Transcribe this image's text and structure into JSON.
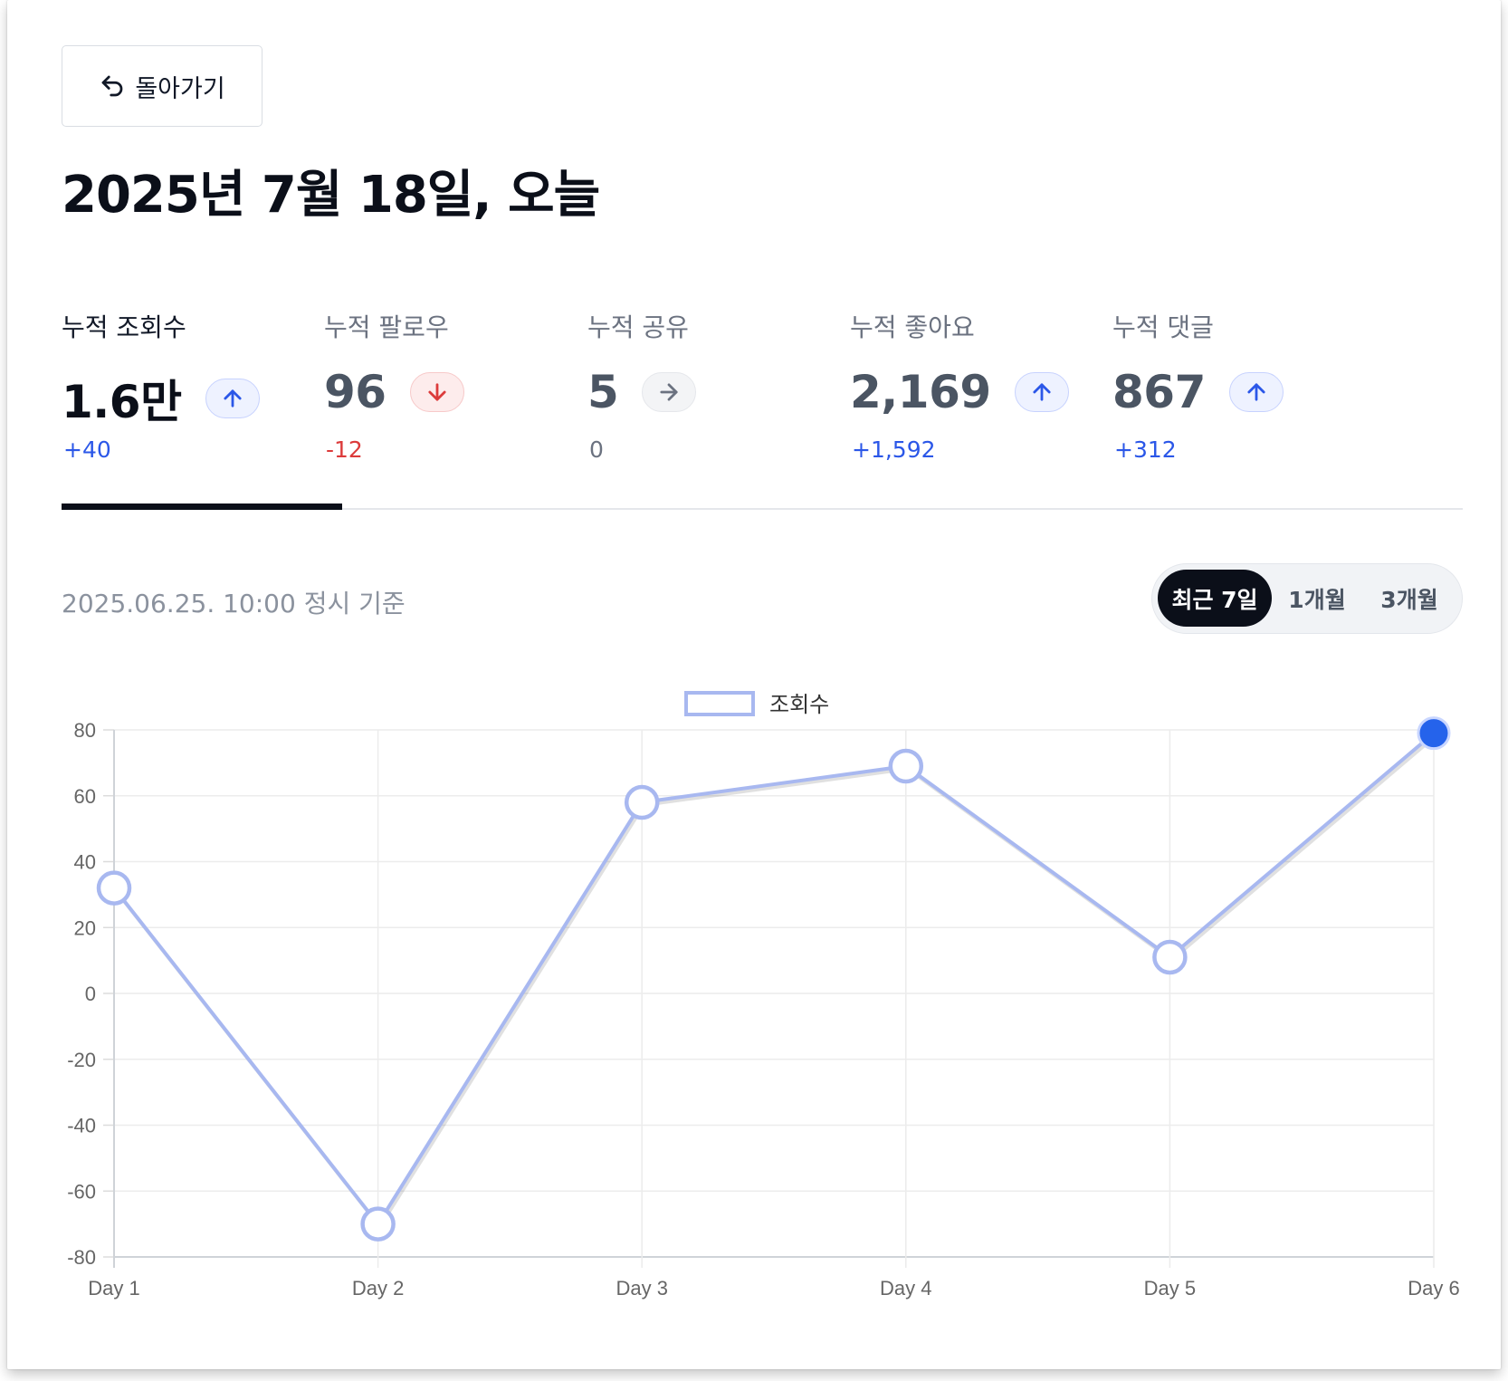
{
  "back_button": {
    "label": "돌아가기",
    "icon": "undo-arrow-icon"
  },
  "page_title": "2025년 7월 18일, 오늘",
  "stats": [
    {
      "label": "누적 조회수",
      "value": "1.6만",
      "delta": "+40",
      "trend": "up",
      "active": true
    },
    {
      "label": "누적 팔로우",
      "value": "96",
      "delta": "-12",
      "trend": "down",
      "active": false
    },
    {
      "label": "누적 공유",
      "value": "5",
      "delta": "0",
      "trend": "flat",
      "active": false
    },
    {
      "label": "누적 좋아요",
      "value": "2,169",
      "delta": "+1,592",
      "trend": "up",
      "active": false
    },
    {
      "label": "누적 댓글",
      "value": "867",
      "delta": "+312",
      "trend": "up",
      "active": false
    }
  ],
  "timestamp": "2025.06.25. 10:00 정시 기준",
  "range_toggle": {
    "options": [
      "최근 7일",
      "1개월",
      "3개월"
    ],
    "selected": "최근 7일"
  },
  "colors": {
    "line": "#a8b8f0",
    "active_point": "#2563eb",
    "up": "#2b57e8",
    "down": "#dc3b3b",
    "neutral": "#6b7280",
    "active_tab": "#0b0f19"
  },
  "chart_data": {
    "type": "line",
    "categories": [
      "Day 1",
      "Day 2",
      "Day 3",
      "Day 4",
      "Day 5",
      "Day 6"
    ],
    "series": [
      {
        "name": "조회수",
        "values": [
          32,
          -70,
          58,
          69,
          11,
          79
        ]
      }
    ],
    "y_ticks": [
      "80",
      "60",
      "40",
      "20",
      "0",
      "-20",
      "-40",
      "-60",
      "-80"
    ],
    "ylim": [
      -80,
      80
    ],
    "highlighted_index": 5,
    "legend_position": "top-center",
    "grid": true
  }
}
